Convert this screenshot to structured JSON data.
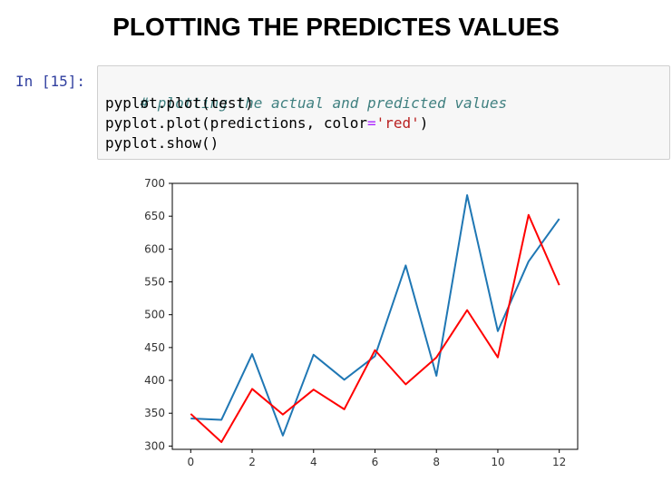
{
  "page": {
    "title": "PLOTTING THE PREDICTES VALUES"
  },
  "notebook": {
    "prompt": "In [15]:",
    "code": {
      "line1_comment": "# plotting the actual and predicted values",
      "line2": "pyplot.plot(test)",
      "line3_pre": "pyplot.plot(predictions, color",
      "line3_op": "=",
      "line3_str": "'red'",
      "line3_post": ")",
      "line4": "pyplot.show()"
    }
  },
  "chart_data": {
    "type": "line",
    "title": "",
    "xlabel": "",
    "ylabel": "",
    "xlim": [
      -0.6,
      12.6
    ],
    "ylim": [
      295,
      700
    ],
    "xticks": [
      0,
      2,
      4,
      6,
      8,
      10,
      12
    ],
    "yticks": [
      300,
      350,
      400,
      450,
      500,
      550,
      600,
      650,
      700
    ],
    "grid": false,
    "legend": "none",
    "x": [
      0,
      1,
      2,
      3,
      4,
      5,
      6,
      7,
      8,
      9,
      10,
      11,
      12
    ],
    "series": [
      {
        "color": "#1f77b4",
        "values": [
          342,
          340,
          440,
          316,
          439,
          401,
          437,
          575,
          407,
          682,
          475,
          581,
          646
        ]
      },
      {
        "color": "#ff0000",
        "values": [
          349,
          306,
          387,
          348,
          386,
          356,
          446,
          394,
          435,
          507,
          435,
          652,
          545
        ]
      }
    ]
  }
}
